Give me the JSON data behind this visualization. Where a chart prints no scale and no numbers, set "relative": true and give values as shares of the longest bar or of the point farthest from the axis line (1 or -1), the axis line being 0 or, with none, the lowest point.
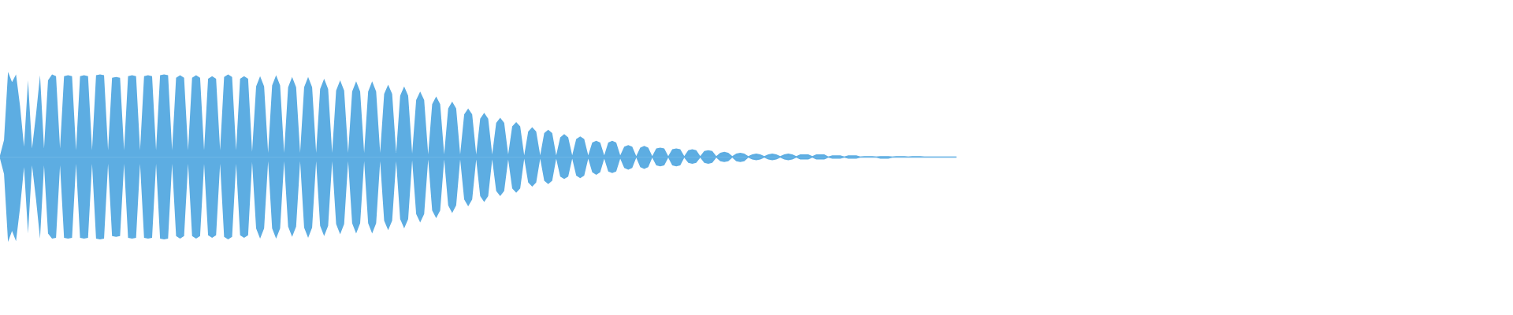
{
  "chart_data": {
    "type": "area",
    "relative": true,
    "categories": [
      null,
      null,
      null,
      null,
      null,
      null,
      null,
      null,
      null,
      null,
      null,
      null,
      null,
      null,
      null,
      null,
      null,
      null,
      null,
      null,
      null,
      null,
      null,
      null,
      null,
      null,
      null,
      null,
      null,
      null,
      null,
      null,
      null,
      null,
      null,
      null,
      null,
      null,
      null,
      null,
      null,
      null,
      null,
      null,
      null,
      null,
      null,
      null,
      null,
      null,
      null,
      null,
      null,
      null,
      null,
      null,
      null,
      null,
      null,
      null,
      null,
      null,
      null,
      null,
      null,
      null,
      null,
      null,
      null,
      null,
      null,
      null,
      null,
      null,
      null,
      null,
      null,
      null,
      null,
      null,
      null,
      null,
      null,
      null,
      null,
      null,
      null,
      null,
      null,
      null,
      null,
      null,
      null,
      null,
      null,
      null,
      null,
      null,
      null,
      null,
      null,
      null,
      null,
      null,
      null,
      null,
      null,
      null,
      null,
      null,
      null,
      null,
      null,
      null,
      null,
      null,
      null,
      null,
      null,
      null,
      null,
      null,
      null,
      null,
      null,
      null,
      null,
      null,
      null,
      null,
      null,
      null,
      null,
      null,
      null,
      null,
      null,
      null,
      null,
      null,
      null,
      null,
      null,
      null,
      null,
      null,
      null,
      null,
      null,
      null,
      null,
      null,
      null,
      null,
      null,
      null,
      null,
      null,
      null,
      null,
      null,
      null,
      null,
      null,
      null,
      null,
      null,
      null,
      null,
      null,
      null,
      null,
      null,
      null,
      null,
      null,
      null,
      null,
      null,
      null,
      null,
      null,
      null,
      null,
      null,
      null,
      null,
      null,
      null,
      null,
      null,
      null,
      null,
      null,
      null,
      null,
      null,
      null,
      null,
      null,
      null,
      null,
      null,
      null,
      null,
      null,
      null,
      null,
      null,
      null,
      null,
      null,
      null,
      null,
      null,
      null,
      null,
      null,
      null,
      null,
      null,
      null,
      null,
      null,
      null,
      null,
      null,
      null,
      null,
      null,
      null,
      null,
      null,
      null,
      null,
      null,
      null,
      null,
      null,
      null
    ],
    "series": [
      {
        "color": "#5dade2",
        "values": [
          0.02,
          0.2,
          1.0,
          0.88,
          0.97,
          0.6,
          0.12,
          0.9,
          0.1,
          0.5,
          0.96,
          0.1,
          0.9,
          0.97,
          0.95,
          0.1,
          0.95,
          0.96,
          0.95,
          0.08,
          0.95,
          0.96,
          0.95,
          0.08,
          0.96,
          0.97,
          0.96,
          0.08,
          0.93,
          0.94,
          0.93,
          0.08,
          0.95,
          0.96,
          0.95,
          0.08,
          0.95,
          0.96,
          0.95,
          0.08,
          0.96,
          0.97,
          0.96,
          0.08,
          0.93,
          0.96,
          0.93,
          0.08,
          0.93,
          0.96,
          0.93,
          0.08,
          0.92,
          0.95,
          0.92,
          0.08,
          0.94,
          0.97,
          0.94,
          0.08,
          0.92,
          0.95,
          0.92,
          0.06,
          0.83,
          0.95,
          0.83,
          0.05,
          0.84,
          0.96,
          0.84,
          0.05,
          0.82,
          0.94,
          0.82,
          0.05,
          0.82,
          0.94,
          0.82,
          0.05,
          0.8,
          0.92,
          0.8,
          0.05,
          0.78,
          0.9,
          0.78,
          0.05,
          0.77,
          0.89,
          0.77,
          0.05,
          0.77,
          0.89,
          0.77,
          0.05,
          0.74,
          0.85,
          0.74,
          0.05,
          0.72,
          0.83,
          0.72,
          0.04,
          0.67,
          0.77,
          0.67,
          0.03,
          0.62,
          0.71,
          0.62,
          0.03,
          0.57,
          0.65,
          0.57,
          0.03,
          0.5,
          0.57,
          0.5,
          0.03,
          0.45,
          0.52,
          0.45,
          0.03,
          0.4,
          0.46,
          0.4,
          0.03,
          0.36,
          0.41,
          0.36,
          0.02,
          0.3,
          0.35,
          0.3,
          0.02,
          0.28,
          0.32,
          0.28,
          0.02,
          0.23,
          0.27,
          0.23,
          0.02,
          0.21,
          0.24,
          0.21,
          0.02,
          0.17,
          0.19,
          0.17,
          0.02,
          0.17,
          0.19,
          0.17,
          0.02,
          0.12,
          0.14,
          0.12,
          0.01,
          0.11,
          0.13,
          0.11,
          0.01,
          0.1,
          0.11,
          0.1,
          0.01,
          0.09,
          0.1,
          0.09,
          0.01,
          0.08,
          0.09,
          0.08,
          0.01,
          0.07,
          0.08,
          0.07,
          0.01,
          0.05,
          0.06,
          0.05,
          0.01,
          0.04,
          0.05,
          0.04,
          0.01,
          0.03,
          0.04,
          0.03,
          0.01,
          0.03,
          0.04,
          0.03,
          0.01,
          0.03,
          0.04,
          0.03,
          0.01,
          0.03,
          0.03,
          0.03,
          0.01,
          0.03,
          0.03,
          0.03,
          0.005,
          0.02,
          0.02,
          0.02,
          0.005,
          0.02,
          0.02,
          0.02,
          0.005,
          0.01,
          0.01,
          0.01,
          0.005,
          0.01,
          0.01,
          0.01,
          0.005,
          0.01,
          0.01,
          0.01,
          0.005,
          0.01,
          0.01,
          0.01,
          0.005,
          0.005,
          0.005,
          0.005,
          0.005,
          0.005,
          0.005,
          0.005,
          0.005
        ]
      },
      {
        "color": "#5dade2",
        "values": [
          -0.02,
          -0.2,
          -1.0,
          -0.87,
          -0.99,
          -0.6,
          -0.12,
          -0.9,
          -0.1,
          -0.5,
          -0.96,
          -0.1,
          -0.9,
          -0.96,
          -0.95,
          -0.1,
          -0.95,
          -0.96,
          -0.95,
          -0.08,
          -0.95,
          -0.96,
          -0.95,
          -0.08,
          -0.96,
          -0.97,
          -0.96,
          -0.08,
          -0.93,
          -0.94,
          -0.93,
          -0.08,
          -0.95,
          -0.96,
          -0.95,
          -0.08,
          -0.95,
          -0.96,
          -0.95,
          -0.08,
          -0.96,
          -0.97,
          -0.96,
          -0.08,
          -0.93,
          -0.96,
          -0.93,
          -0.08,
          -0.93,
          -0.96,
          -0.93,
          -0.08,
          -0.92,
          -0.95,
          -0.92,
          -0.08,
          -0.94,
          -0.97,
          -0.94,
          -0.08,
          -0.92,
          -0.95,
          -0.92,
          -0.06,
          -0.84,
          -0.96,
          -0.84,
          -0.05,
          -0.84,
          -0.96,
          -0.84,
          -0.05,
          -0.82,
          -0.94,
          -0.82,
          -0.05,
          -0.83,
          -0.95,
          -0.83,
          -0.05,
          -0.81,
          -0.93,
          -0.81,
          -0.05,
          -0.79,
          -0.91,
          -0.79,
          -0.05,
          -0.78,
          -0.9,
          -0.78,
          -0.05,
          -0.78,
          -0.9,
          -0.78,
          -0.05,
          -0.75,
          -0.86,
          -0.75,
          -0.05,
          -0.73,
          -0.84,
          -0.73,
          -0.04,
          -0.67,
          -0.77,
          -0.67,
          -0.03,
          -0.63,
          -0.72,
          -0.63,
          -0.03,
          -0.57,
          -0.66,
          -0.57,
          -0.03,
          -0.5,
          -0.58,
          -0.5,
          -0.03,
          -0.46,
          -0.53,
          -0.46,
          -0.03,
          -0.4,
          -0.46,
          -0.4,
          -0.03,
          -0.37,
          -0.42,
          -0.37,
          -0.02,
          -0.3,
          -0.35,
          -0.3,
          -0.02,
          -0.28,
          -0.32,
          -0.28,
          -0.02,
          -0.23,
          -0.26,
          -0.23,
          -0.02,
          -0.22,
          -0.25,
          -0.22,
          -0.02,
          -0.18,
          -0.21,
          -0.18,
          -0.02,
          -0.17,
          -0.19,
          -0.17,
          -0.02,
          -0.13,
          -0.15,
          -0.13,
          -0.01,
          -0.12,
          -0.14,
          -0.12,
          -0.01,
          -0.1,
          -0.11,
          -0.1,
          -0.01,
          -0.1,
          -0.11,
          -0.1,
          -0.01,
          -0.07,
          -0.08,
          -0.07,
          -0.01,
          -0.07,
          -0.08,
          -0.07,
          -0.01,
          -0.05,
          -0.06,
          -0.05,
          -0.01,
          -0.05,
          -0.06,
          -0.05,
          -0.01,
          -0.03,
          -0.04,
          -0.03,
          -0.01,
          -0.03,
          -0.04,
          -0.03,
          -0.01,
          -0.03,
          -0.04,
          -0.03,
          -0.01,
          -0.03,
          -0.03,
          -0.03,
          -0.01,
          -0.03,
          -0.03,
          -0.03,
          -0.01,
          -0.02,
          -0.02,
          -0.02,
          -0.01,
          -0.02,
          -0.02,
          -0.02,
          -0.01,
          -0.01,
          -0.01,
          -0.01,
          -0.01,
          -0.02,
          -0.02,
          -0.02,
          -0.01,
          -0.01,
          -0.01,
          -0.01,
          -0.01,
          -0.01,
          -0.01,
          -0.01,
          -0.01,
          -0.01,
          -0.01,
          -0.01,
          -0.01,
          -0.01,
          -0.01,
          -0.01,
          -0.01
        ]
      }
    ]
  }
}
